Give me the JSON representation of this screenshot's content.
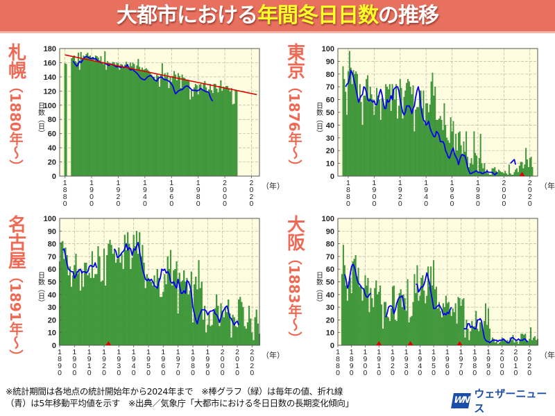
{
  "header": {
    "title_part1": "大都市における",
    "title_highlight": "年間冬日日数",
    "title_part2": "の推移"
  },
  "colors": {
    "header_bg": "#e8705f",
    "title_highlight": "#ffff28",
    "city_label": "#ee6a55",
    "plot_bg": "#fffde0",
    "bar": "#3f9c3a",
    "moving_avg": "#0000ee",
    "trend": "#e00000",
    "marker": "#e00000"
  },
  "footer": {
    "line1": "※統計期間は各地点の統計開始年から2024年まで　※棒グラフ（緑）は毎年の値、折れ線",
    "line2": "（青）は5年移動平均値を示す　※出典／気象庁「大都市における冬日日数の長期変化傾向」"
  },
  "logo": {
    "mark": "WN",
    "text": "ウェザーニュース"
  },
  "chart_data": [
    {
      "type": "bar",
      "id": "sapporo",
      "city": "札幌",
      "period_label": "（1880年～）",
      "ylabel": "日数（日）",
      "xlabel": "（年）",
      "ylim": [
        0,
        180
      ],
      "yticks": [
        0,
        20,
        40,
        60,
        80,
        100,
        120,
        140,
        160,
        180
      ],
      "xlim": [
        1876,
        2026
      ],
      "xticks": [
        1880,
        1900,
        1920,
        1940,
        1960,
        1980,
        2000,
        2020
      ],
      "start_year": 1880,
      "values": [
        159,
        158,
        0,
        0,
        0,
        166,
        168,
        170,
        162,
        160,
        174,
        150,
        175,
        165,
        170,
        168,
        172,
        174,
        169,
        170,
        165,
        168,
        162,
        170,
        169,
        167,
        163,
        169,
        160,
        158,
        176,
        150,
        162,
        160,
        159,
        158,
        161,
        160,
        155,
        160,
        159,
        150,
        158,
        157,
        152,
        157,
        161,
        158,
        154,
        160,
        155,
        160,
        158,
        150,
        156,
        165,
        154,
        150,
        153,
        150,
        151,
        152,
        150,
        148,
        146,
        143,
        138,
        140,
        135,
        143,
        141,
        126,
        143,
        159,
        137,
        145,
        140,
        146,
        124,
        140,
        133,
        141,
        148,
        143,
        135,
        145,
        141,
        124,
        143,
        139,
        138,
        135,
        136,
        134,
        108,
        121,
        112,
        125,
        130,
        128,
        115,
        129,
        130,
        122,
        131,
        134,
        125,
        118,
        122,
        130,
        121,
        117,
        130,
        130,
        123,
        118,
        127,
        135,
        120,
        126,
        124,
        127,
        127,
        123,
        119,
        124,
        101,
        102,
        121,
        120
      ],
      "moving_average": [
        null,
        null,
        null,
        null,
        null,
        null,
        162,
        160,
        157,
        155,
        158,
        162,
        160,
        163,
        166,
        168,
        169,
        168,
        167,
        166,
        166,
        167,
        165,
        166,
        164,
        162,
        161,
        160,
        160,
        160,
        159,
        158,
        157,
        156,
        158,
        158,
        157,
        156,
        155,
        154,
        155,
        154,
        153,
        155,
        153,
        154,
        155,
        157,
        152,
        150,
        150,
        151,
        148,
        147,
        145,
        143,
        140,
        138,
        137,
        136,
        136,
        138,
        140,
        141,
        142,
        141,
        139,
        136,
        135,
        134,
        138,
        139,
        140,
        139,
        137,
        136,
        136,
        135,
        134,
        132,
        130,
        127,
        121,
        116,
        118,
        120,
        121,
        122,
        122,
        124,
        126,
        127,
        127,
        126,
        124,
        122,
        121,
        121,
        121,
        120,
        121,
        122,
        124,
        122,
        121,
        120,
        119,
        119,
        118,
        112,
        108,
        106,
        null,
        null
      ],
      "trend": {
        "start": [
          1880,
          171
        ],
        "end": [
          2024,
          115
        ]
      },
      "gap_markers": []
    },
    {
      "type": "bar",
      "id": "tokyo",
      "city": "東京",
      "period_label": "（1876年～）",
      "ylabel": "日数（日）",
      "xlabel": "（年）",
      "ylim": [
        0,
        100
      ],
      "yticks": [
        0,
        10,
        20,
        30,
        40,
        50,
        60,
        70,
        80,
        90,
        100
      ],
      "xlim": [
        1872,
        2026
      ],
      "xticks": [
        1880,
        1900,
        1920,
        1940,
        1960,
        1980,
        2000,
        2020
      ],
      "start_year": 1876,
      "values": [
        86,
        76,
        66,
        48,
        82,
        98,
        85,
        72,
        83,
        80,
        82,
        80,
        60,
        72,
        58,
        40,
        63,
        63,
        76,
        79,
        61,
        70,
        64,
        60,
        48,
        55,
        69,
        63,
        60,
        44,
        61,
        57,
        55,
        72,
        70,
        68,
        72,
        51,
        72,
        68,
        60,
        72,
        45,
        55,
        76,
        69,
        45,
        62,
        67,
        73,
        76,
        74,
        70,
        64,
        71,
        35,
        52,
        54,
        54,
        67,
        67,
        53,
        67,
        41,
        57,
        57,
        50,
        56,
        74,
        81,
        63,
        70,
        44,
        44,
        45,
        47,
        44,
        36,
        57,
        40,
        30,
        28,
        26,
        46,
        35,
        43,
        18,
        33,
        20,
        34,
        35,
        24,
        16,
        27,
        19,
        35,
        15,
        7,
        10,
        14,
        9,
        35,
        18,
        16,
        3,
        14,
        33,
        10,
        6,
        10,
        3,
        5,
        2,
        1,
        1,
        6,
        6,
        7,
        4,
        3,
        5,
        4,
        3,
        3,
        2,
        4,
        2,
        1,
        9,
        2,
        1,
        1,
        3,
        5,
        6,
        3,
        8,
        11,
        11,
        6,
        9,
        22,
        13,
        7,
        14,
        15,
        7
      ],
      "moving_average": [
        null,
        null,
        70,
        72,
        73,
        77,
        83,
        81,
        77,
        73,
        68,
        63,
        58,
        61,
        63,
        64,
        70,
        69,
        66,
        60,
        59,
        60,
        59,
        58,
        59,
        56,
        56,
        60,
        65,
        68,
        64,
        58,
        53,
        53,
        60,
        58,
        59,
        63,
        60,
        68,
        69,
        70,
        70,
        67,
        60,
        55,
        50,
        48,
        50,
        55,
        55,
        55,
        53,
        49,
        53,
        55,
        62,
        67,
        70,
        65,
        55,
        48,
        44,
        43,
        40,
        41,
        43,
        38,
        35,
        33,
        31,
        31,
        35,
        34,
        32,
        27,
        27,
        27,
        25,
        20,
        18,
        15,
        14,
        17,
        20,
        22,
        17,
        15,
        13,
        9,
        13,
        16,
        17,
        16,
        16,
        12,
        7,
        4,
        2,
        2,
        3,
        3,
        4,
        4,
        3,
        3,
        3,
        2,
        2,
        3,
        3,
        4,
        3,
        3,
        3,
        3,
        2,
        1,
        2,
        3,
        null,
        null,
        null,
        null,
        null,
        null,
        null,
        null,
        null,
        10,
        11,
        12,
        13,
        9,
        null,
        null,
        null,
        null,
        null,
        null,
        null,
        null,
        null,
        null,
        null,
        null,
        null
      ],
      "gap_markers": [
        2014
      ]
    },
    {
      "type": "bar",
      "id": "nagoya",
      "city": "名古屋",
      "period_label": "（1891年～）",
      "ylabel": "日数（日）",
      "xlabel": "（年）",
      "ylim": [
        0,
        100
      ],
      "yticks": [
        0,
        10,
        20,
        30,
        40,
        50,
        60,
        70,
        80,
        90,
        100
      ],
      "xlim": [
        1890,
        2025
      ],
      "xticks": [
        1890,
        1900,
        1910,
        1920,
        1930,
        1940,
        1950,
        1960,
        1970,
        1980,
        1990,
        2000,
        2010,
        2020
      ],
      "start_year": 1890,
      "values": [
        66,
        81,
        82,
        68,
        77,
        71,
        55,
        62,
        46,
        55,
        63,
        72,
        56,
        60,
        43,
        59,
        46,
        65,
        65,
        55,
        57,
        53,
        74,
        53,
        56,
        56,
        78,
        70,
        50,
        51,
        76,
        47,
        71,
        80,
        83,
        79,
        72,
        76,
        65,
        68,
        77,
        65,
        72,
        60,
        87,
        75,
        89,
        80,
        60,
        69,
        87,
        78,
        90,
        72,
        89,
        70,
        79,
        65,
        45,
        56,
        53,
        52,
        50,
        47,
        55,
        45,
        60,
        53,
        38,
        38,
        42,
        56,
        48,
        70,
        60,
        75,
        47,
        59,
        60,
        66,
        25,
        57,
        50,
        51,
        59,
        50,
        53,
        40,
        43,
        58,
        18,
        48,
        54,
        44,
        67,
        45,
        50,
        20,
        31,
        10,
        16,
        26,
        15,
        16,
        26,
        29,
        40,
        31,
        15,
        33,
        27,
        22,
        30,
        26,
        36,
        25,
        6,
        24,
        22,
        15,
        14,
        36,
        38,
        34,
        30,
        15,
        13,
        18,
        31,
        21,
        10,
        4,
        22,
        28,
        17,
        9
      ],
      "moving_average": [
        null,
        null,
        75,
        76,
        70,
        64,
        60,
        59,
        58,
        58,
        53,
        55,
        58,
        59,
        60,
        57,
        58,
        58,
        57,
        58,
        62,
        63,
        62,
        62,
        65,
        61,
        null,
        null,
        null,
        null,
        null,
        null,
        null,
        null,
        null,
        null,
        null,
        76,
        74,
        69,
        70,
        71,
        73,
        74,
        76,
        80,
        75,
        77,
        76,
        71,
        76,
        75,
        78,
        81,
        74,
        67,
        60,
        56,
        52,
        51,
        52,
        51,
        52,
        50,
        47,
        46,
        45,
        50,
        53,
        60,
        59,
        60,
        57,
        58,
        56,
        50,
        49,
        50,
        47,
        45,
        52,
        47,
        41,
        41,
        43,
        41,
        51,
        50,
        47,
        41,
        30,
        25,
        20,
        17,
        22,
        25,
        28,
        28,
        28,
        27,
        24,
        26,
        27,
        27,
        28,
        25,
        24,
        22,
        18,
        22,
        26,
        28,
        30,
        31,
        27,
        22,
        21,
        18,
        16,
        18,
        19,
        16,
        null,
        null,
        null
      ],
      "gap_markers": [
        1923
      ]
    },
    {
      "type": "bar",
      "id": "osaka",
      "city": "大阪",
      "period_label": "（1883年～）",
      "ylabel": "日数（日）",
      "xlabel": "（年）",
      "ylim": [
        0,
        100
      ],
      "yticks": [
        0,
        10,
        20,
        30,
        40,
        50,
        60,
        70,
        80,
        90,
        100
      ],
      "xlim": [
        1880,
        2026
      ],
      "xticks": [
        1880,
        1890,
        1900,
        1910,
        1920,
        1930,
        1940,
        1950,
        1960,
        1970,
        1980,
        1990,
        2000,
        2010,
        2020
      ],
      "start_year": 1883,
      "values": [
        56,
        79,
        63,
        47,
        35,
        50,
        53,
        41,
        66,
        68,
        71,
        54,
        61,
        46,
        47,
        35,
        45,
        55,
        47,
        53,
        26,
        45,
        37,
        30,
        45,
        51,
        40,
        42,
        47,
        32,
        13,
        34,
        34,
        23,
        22,
        19,
        29,
        46,
        47,
        20,
        19,
        36,
        41,
        44,
        30,
        40,
        37,
        27,
        52,
        18,
        22,
        23,
        34,
        56,
        41,
        63,
        35,
        39,
        53,
        55,
        43,
        33,
        39,
        62,
        46,
        62,
        47,
        67,
        44,
        46,
        29,
        34,
        27,
        22,
        33,
        30,
        39,
        33,
        34,
        27,
        23,
        29,
        26,
        33,
        17,
        38,
        37,
        31,
        36,
        37,
        6,
        20,
        13,
        4,
        11,
        19,
        14,
        15,
        27,
        13,
        11,
        18,
        18,
        12,
        19,
        33,
        16,
        29,
        13,
        3,
        6,
        5,
        2,
        3,
        1,
        2,
        3,
        6,
        5,
        4,
        3,
        4,
        2,
        6,
        4,
        8,
        2,
        4,
        3,
        1,
        4,
        9,
        9,
        8,
        9,
        4,
        3,
        5,
        14,
        4,
        6,
        7,
        4,
        5
      ],
      "moving_average": [
        null,
        null,
        56,
        52,
        45,
        48,
        56,
        62,
        64,
        62,
        58,
        52,
        49,
        48,
        46,
        45,
        44,
        40,
        38,
        38,
        40,
        41,
        null,
        null,
        null,
        null,
        null,
        null,
        null,
        null,
        null,
        null,
        22,
        25,
        30,
        31,
        31,
        30,
        25,
        28,
        33,
        36,
        38,
        38,
        39,
        33,
        28,
        null,
        null,
        null,
        null,
        null,
        null,
        null,
        48,
        48,
        42,
        44,
        46,
        46,
        48,
        52,
        57,
        53,
        49,
        42,
        36,
        29,
        29,
        30,
        31,
        32,
        30,
        28,
        24,
        25,
        24,
        26,
        25,
        28,
        30,
        null,
        null,
        null,
        null,
        null,
        null,
        null,
        null,
        13,
        13,
        13,
        17,
        17,
        14,
        15,
        14,
        13,
        13,
        20,
        20,
        21,
        19,
        12,
        6,
        4,
        3,
        3,
        2,
        3,
        4,
        4,
        4,
        4,
        3,
        4,
        4,
        4,
        5,
        4,
        3,
        2,
        2,
        4,
        6,
        6,
        5,
        4,
        4,
        5,
        4,
        4,
        4,
        5,
        5,
        3,
        3,
        null,
        null
      ],
      "gap_markers": [
        1910,
        1933,
        1969
      ]
    }
  ]
}
